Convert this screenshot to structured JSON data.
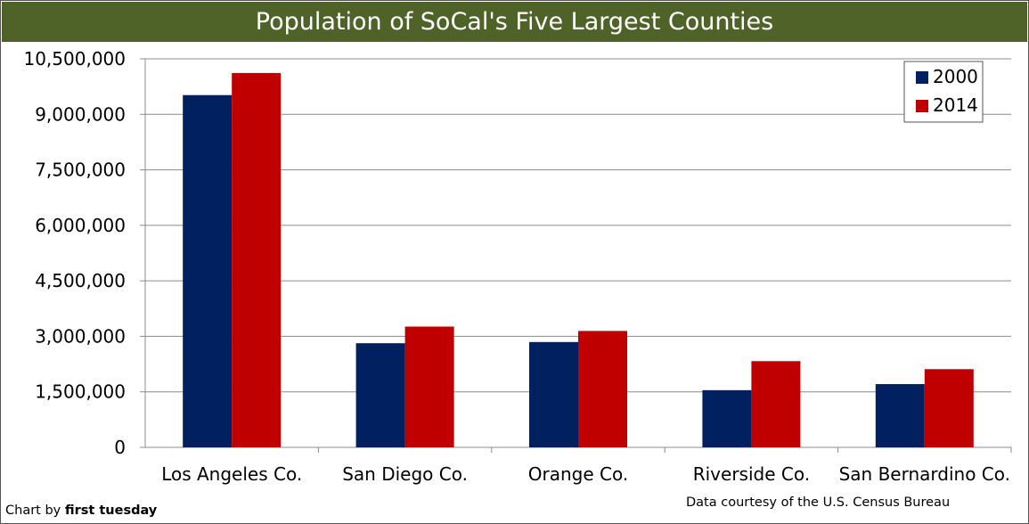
{
  "chart_data": {
    "type": "bar",
    "title": "Population of SoCal's Five Largest Counties",
    "categories": [
      "Los Angeles Co.",
      "San Diego Co.",
      "Orange Co.",
      "Riverside Co.",
      "San Bernardino Co."
    ],
    "series": [
      {
        "name": "2000",
        "color": "#002060",
        "values": [
          9519338,
          2813833,
          2846289,
          1545387,
          1709434
        ]
      },
      {
        "name": "2014",
        "color": "#c00000",
        "values": [
          10116705,
          3263431,
          3145515,
          2329271,
          2112619
        ]
      }
    ],
    "ylim": [
      0,
      10500000
    ],
    "yticks": [
      0,
      1500000,
      3000000,
      4500000,
      6000000,
      7500000,
      9000000,
      10500000
    ],
    "ytick_labels": [
      "0",
      "1,500,000",
      "3,000,000",
      "4,500,000",
      "6,000,000",
      "7,500,000",
      "9,000,000",
      "10,500,000"
    ],
    "grid": true,
    "legend": "top-right"
  },
  "credits": {
    "left_prefix": "Chart by ",
    "left_brand": "first tuesday",
    "right": "Data courtesy of the U.S. Census Bureau"
  }
}
